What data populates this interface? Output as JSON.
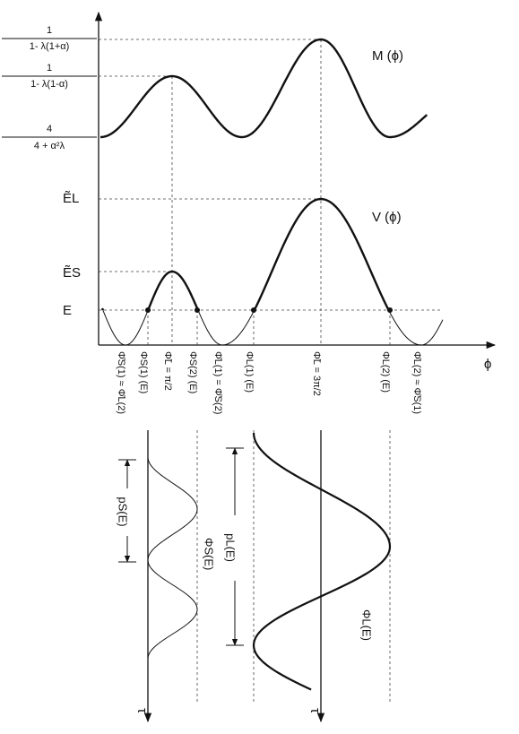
{
  "m_labels": [
    {
      "numerator": "1",
      "denominator": "1- λ(1+α)"
    },
    {
      "numerator": "1",
      "denominator": "1- λ(1-α)"
    },
    {
      "numerator": "4",
      "denominator": "4 + α²λ"
    }
  ],
  "m_curve_label": "M (ϕ)",
  "v_curve_label": "V (ϕ)",
  "v_levels": [
    "ẼL",
    "ẼS",
    "E"
  ],
  "x_axis_label": "ϕ",
  "x_ticks": [
    "Φ̌S(1) ≈ Φ̌L(2)",
    "ΦS(1) (E)",
    "Φ̃L = π/2",
    "ΦS(2) (E)",
    "Φ̌L(1) = Φ̌S(2)",
    "ΦL(1) (E)",
    "Φ̃L = 3π/2",
    "ΦL(2) (E)",
    "Φ̌L(2) ≈ Φ̌S(1)"
  ],
  "time_plots": {
    "short": {
      "period_label": "pS(E)",
      "curve_label": "ΦS(E)",
      "axis_label": "τ"
    },
    "long": {
      "period_label": "pL(E)",
      "curve_label": "ΦL(E)",
      "axis_label": "τ"
    }
  }
}
